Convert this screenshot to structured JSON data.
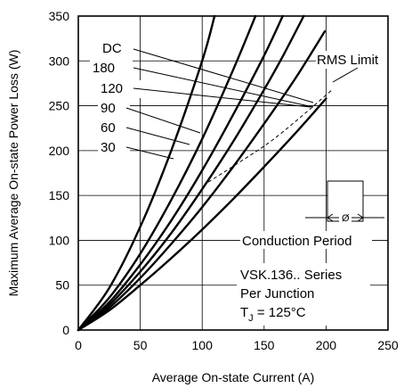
{
  "chart_data": {
    "type": "line",
    "xlabel": "Average On-state Current (A)",
    "ylabel": "Maximum Average On-state Power Loss (W)",
    "xlim": [
      0,
      250
    ],
    "ylim": [
      0,
      350
    ],
    "x_ticks": [
      "0",
      "50",
      "100",
      "150",
      "200",
      "250"
    ],
    "y_ticks": [
      "0",
      "50",
      "100",
      "150",
      "200",
      "250",
      "300",
      "350"
    ],
    "grid": true,
    "series": [
      {
        "name": "DC",
        "x": [
          0,
          25,
          50,
          75,
          100,
          125,
          150,
          175,
          200
        ],
        "y": [
          0,
          22,
          50,
          80,
          112,
          146,
          182,
          219,
          258
        ]
      },
      {
        "name": "180",
        "x": [
          0,
          25,
          50,
          75,
          100,
          125,
          150,
          175,
          199
        ],
        "y": [
          0,
          25,
          58,
          96,
          137,
          182,
          230,
          280,
          333
        ]
      },
      {
        "name": "120",
        "x": [
          0,
          25,
          50,
          75,
          100,
          125,
          150,
          165,
          182
        ],
        "y": [
          0,
          28,
          65,
          108,
          157,
          210,
          268,
          305,
          350
        ]
      },
      {
        "name": "90",
        "x": [
          0,
          25,
          50,
          75,
          100,
          125,
          150,
          165
        ],
        "y": [
          0,
          31,
          73,
          122,
          178,
          240,
          306,
          350
        ]
      },
      {
        "name": "60",
        "x": [
          0,
          25,
          50,
          75,
          100,
          125,
          143
        ],
        "y": [
          0,
          36,
          85,
          145,
          213,
          290,
          350
        ]
      },
      {
        "name": "30",
        "x": [
          0,
          25,
          50,
          75,
          100,
          110
        ],
        "y": [
          0,
          47,
          115,
          200,
          300,
          350
        ]
      }
    ],
    "rms_limit": {
      "name": "RMS Limit",
      "x": [
        105,
        130,
        155,
        180,
        205
      ],
      "y": [
        165,
        187,
        210,
        238,
        268
      ]
    },
    "annotations": {
      "conduction_period": "Conduction Period",
      "conduction_symbol": "Ø",
      "series_line1": "VSK.136.. Series",
      "series_line2": "Per Junction",
      "tj_symbol": "T",
      "tj_sub": "J",
      "tj_value": " = 125°C"
    }
  }
}
